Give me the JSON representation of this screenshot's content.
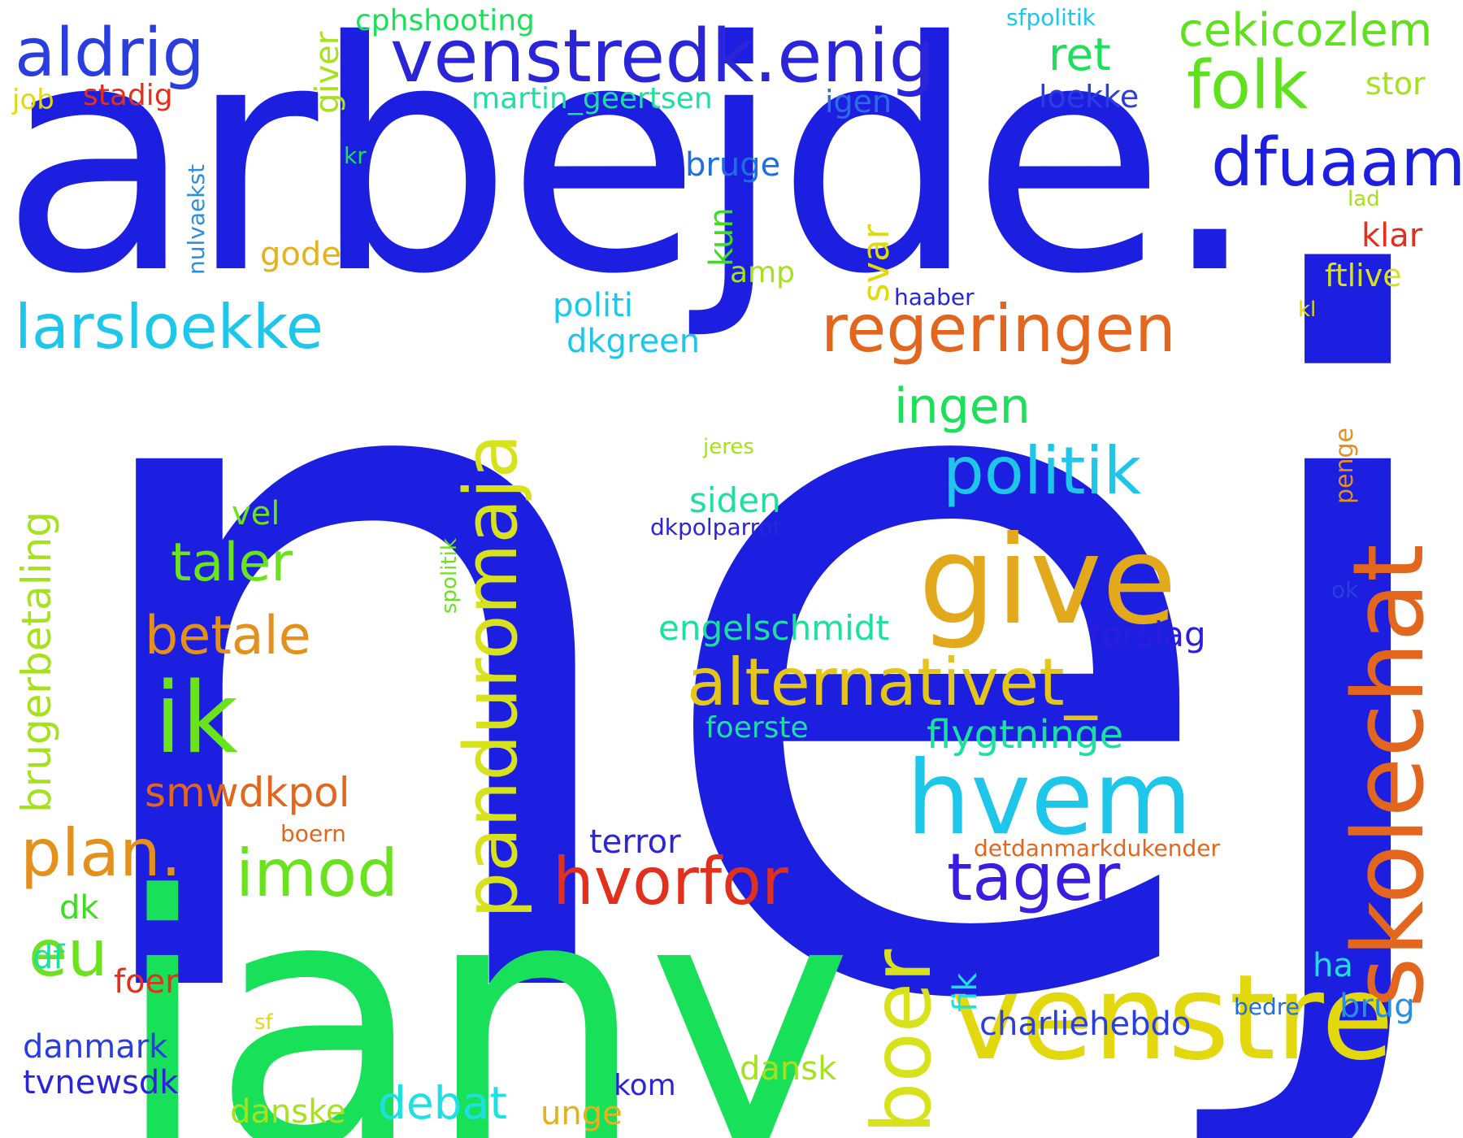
{
  "words": {
    "nej": "nej",
    "arbejde": "arbejde.",
    "jany": "jany",
    "skolechat": "skolechat",
    "venstre": "venstre",
    "give": "give",
    "hvem": "hvem",
    "panduromaja": "panduromaja",
    "venstredk": "venstredk.enig",
    "regeringen": "regeringen",
    "larsloekke": "larsloekke",
    "aldrig": "aldrig",
    "folk": "folk",
    "dfuaam": "dfuaam",
    "cekicozlem": "cekicozlem",
    "politik": "politik",
    "ik": "ik",
    "alternativet": "alternativet_",
    "boer": "boer",
    "hvorfor": "hvorfor",
    "tager": "tager",
    "plan": "plan.",
    "imod": "imod",
    "eu": "eu",
    "taler": "taler",
    "betale": "betale",
    "ingen": "ingen",
    "brugerbetaling": "brugerbetaling",
    "smwdkpol": "smwdkpol",
    "ret": "ret",
    "debat": "debat",
    "flygtninge": "flygtninge",
    "charliehebdo": "charliehebdo",
    "engelschmidt": "engelschmidt",
    "forslag": "forslag",
    "danmark": "danmark",
    "tvnewsdk": "tvnewsdk",
    "terror": "terror",
    "siden": "siden",
    "stadig": "stadig",
    "martin_geertsen": "martin_geertsen",
    "cphshooting": "cphshooting",
    "loekke": "loekke",
    "stor": "stor",
    "igen": "igen",
    "bruge": "bruge",
    "politi": "politi",
    "dkgreen": "dkgreen",
    "gode": "gode",
    "amp": "amp",
    "klar": "klar",
    "ftlive": "ftlive",
    "haaber": "haaber",
    "job": "job",
    "vel": "vel",
    "foerste": "foerste",
    "dkpolparrot": "dkpolparrot",
    "jeres": "jeres",
    "boern": "boern",
    "detdanmarkdukender": "detdanmarkdukender",
    "ok": "ok",
    "ha": "ha",
    "brug": "brug",
    "bedre": "bedre",
    "df": "df",
    "dk": "dk",
    "foer": "foer",
    "sf": "sf",
    "dansk": "dansk",
    "danske": "danske",
    "unge": "unge",
    "kom": "kom",
    "sfpolitik": "sfpolitik",
    "kr": "kr",
    "lad": "lad",
    "kl": "kl",
    "giver": "giver",
    "nulvaekst": "nulvaekst",
    "kun": "kun",
    "svar": "svar",
    "penge": "penge",
    "spolitik": "spolitik",
    "fik": "fik"
  },
  "colors": {
    "background": "#ffffff",
    "primary_blue": "#1d1fe0",
    "green": "#18e058",
    "orange": "#e2661d",
    "yellow": "#e3d80e",
    "cyan": "#1ec6ea"
  }
}
